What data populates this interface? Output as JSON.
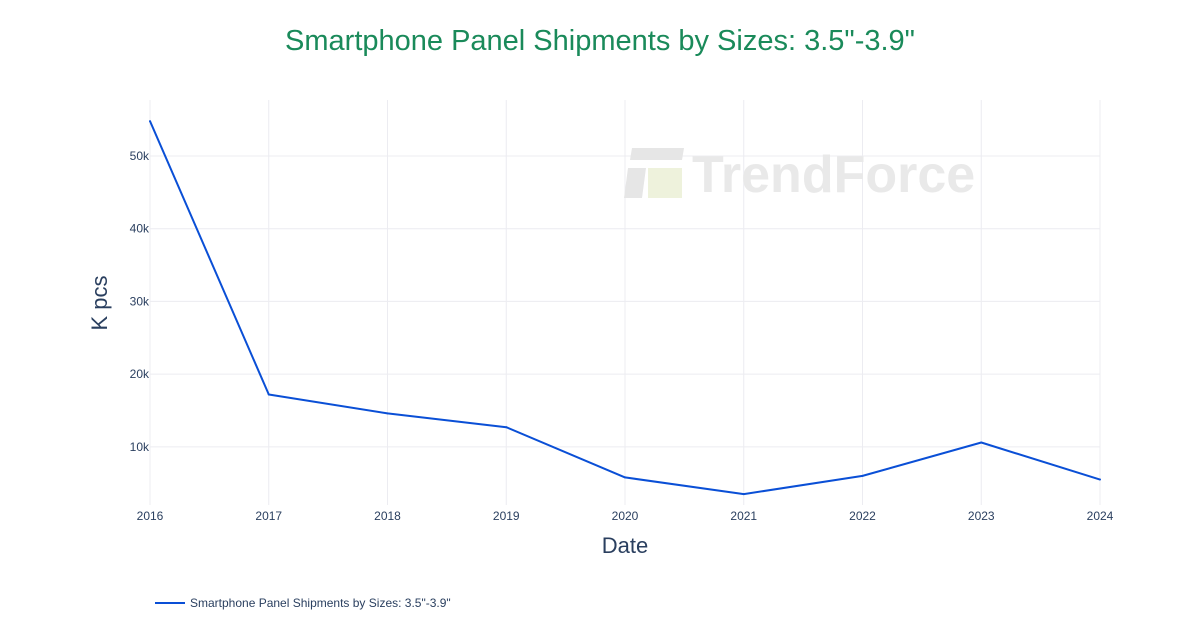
{
  "colors": {
    "title": "#1a8a5a",
    "series": "#0a4fd6",
    "text": "#2a3f5f",
    "grid": "#ececf1",
    "watermark": "#e6e6e6",
    "watermark_accent": "#eef2dc"
  },
  "watermark": {
    "text": "TrendForce"
  },
  "chart_data": {
    "type": "line",
    "title": "Smartphone Panel Shipments by Sizes: 3.5\"-3.9\"",
    "xlabel": "Date",
    "ylabel": "K pcs",
    "x": [
      "2016",
      "2017",
      "2018",
      "2019",
      "2020",
      "2021",
      "2022",
      "2023",
      "2024"
    ],
    "x_ticks": [
      "2016",
      "2017",
      "2018",
      "2019",
      "2020",
      "2021",
      "2022",
      "2023",
      "2024"
    ],
    "y_ticks": [
      10000,
      20000,
      30000,
      40000,
      50000
    ],
    "y_tick_labels": [
      "10k",
      "20k",
      "30k",
      "40k",
      "50k"
    ],
    "ylim": [
      2000,
      57700
    ],
    "grid": true,
    "legend_position": "bottom-left",
    "series": [
      {
        "name": "Smartphone Panel Shipments by Sizes: 3.5\"-3.9\"",
        "values": [
          54800,
          17200,
          14600,
          12700,
          5800,
          3500,
          6000,
          10600,
          5500
        ]
      }
    ]
  }
}
